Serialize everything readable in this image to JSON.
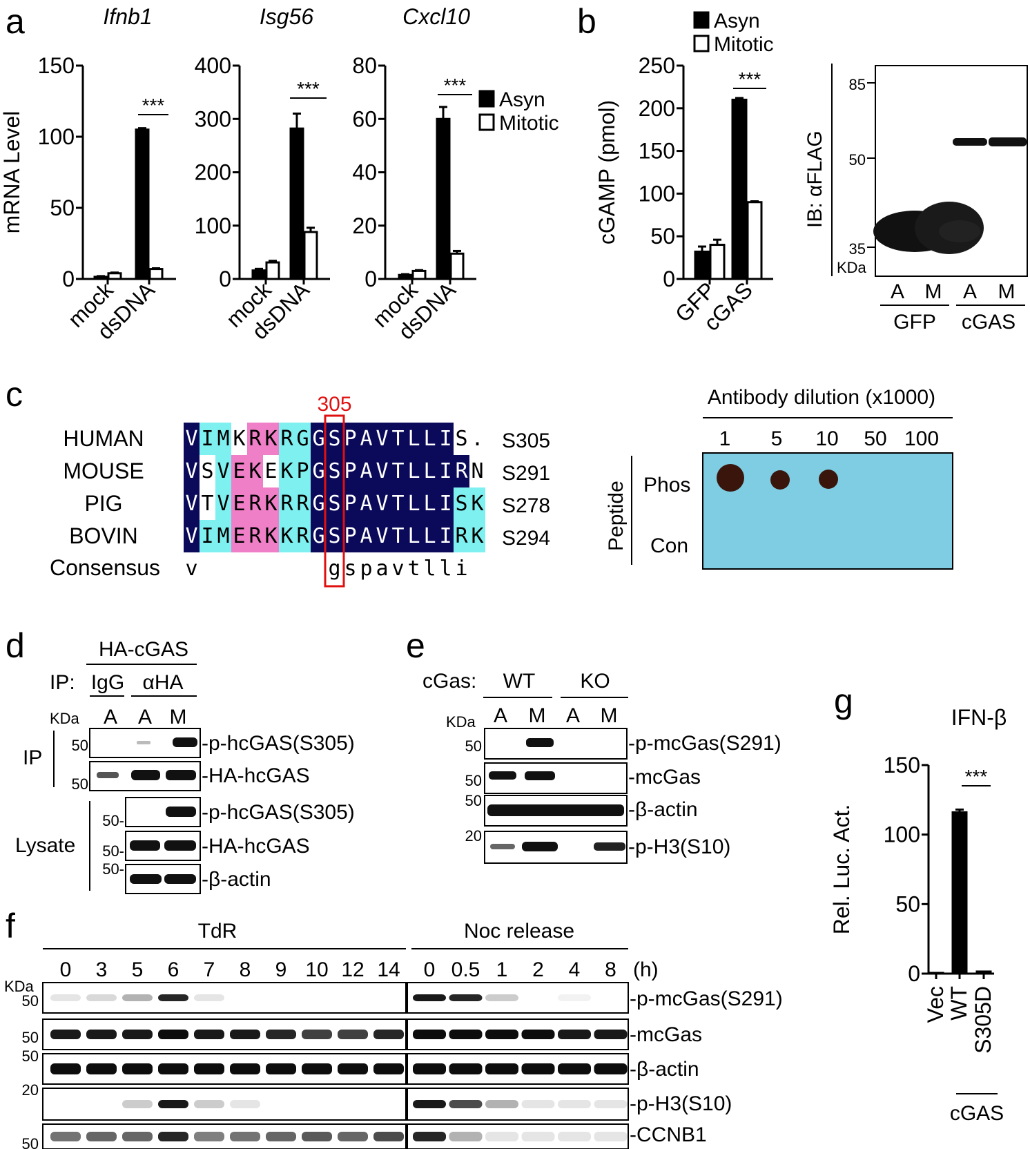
{
  "panel_letters": {
    "a": "a",
    "b": "b",
    "c": "c",
    "d": "d",
    "e": "e",
    "f": "f",
    "g": "g"
  },
  "chart_data": [
    {
      "type": "bar",
      "panel": "a",
      "title": "Ifnb1",
      "ylabel": "mRNA Level",
      "ylim": [
        0,
        150
      ],
      "yticks": [
        "0",
        "50",
        "100",
        "150"
      ],
      "categories": [
        "mock",
        "dsDNA"
      ],
      "series": [
        {
          "name": "Asyn",
          "values": [
            1.5,
            105
          ],
          "errors": [
            0.5,
            1
          ]
        },
        {
          "name": "Mitotic",
          "values": [
            4,
            7
          ],
          "errors": [
            0.5,
            0.5
          ]
        }
      ],
      "significance": "***"
    },
    {
      "type": "bar",
      "panel": "a",
      "title": "Isg56",
      "ylabel": "",
      "ylim": [
        0,
        400
      ],
      "yticks": [
        "0",
        "100",
        "200",
        "300",
        "400"
      ],
      "categories": [
        "mock",
        "dsDNA"
      ],
      "series": [
        {
          "name": "Asyn",
          "values": [
            16,
            282
          ],
          "errors": [
            3,
            28
          ]
        },
        {
          "name": "Mitotic",
          "values": [
            31,
            88
          ],
          "errors": [
            3,
            8
          ]
        }
      ],
      "significance": "***"
    },
    {
      "type": "bar",
      "panel": "a",
      "title": "Cxcl10",
      "ylabel": "",
      "ylim": [
        0,
        80
      ],
      "yticks": [
        "0",
        "20",
        "40",
        "60",
        "80"
      ],
      "categories": [
        "mock",
        "dsDNA"
      ],
      "series": [
        {
          "name": "Asyn",
          "values": [
            1.5,
            60
          ],
          "errors": [
            0.3,
            4.5
          ]
        },
        {
          "name": "Mitotic",
          "values": [
            3,
            9.5
          ],
          "errors": [
            0.3,
            1
          ]
        }
      ],
      "significance": "***",
      "legend": [
        "Asyn",
        "Mitotic"
      ],
      "legend_position": "top-right"
    },
    {
      "type": "bar",
      "panel": "b",
      "ylabel": "cGAMP (pmol)",
      "ylim": [
        0,
        250
      ],
      "yticks": [
        "0",
        "50",
        "100",
        "150",
        "200",
        "250"
      ],
      "categories": [
        "GFP",
        "cGAS"
      ],
      "series": [
        {
          "name": "Asyn",
          "values": [
            32,
            210
          ],
          "errors": [
            6,
            2
          ]
        },
        {
          "name": "Mitotic",
          "values": [
            40,
            90
          ],
          "errors": [
            6,
            1
          ]
        }
      ],
      "significance": "***",
      "legend": [
        "Asyn",
        "Mitotic"
      ],
      "legend_position": "top"
    },
    {
      "type": "bar",
      "panel": "g",
      "title": "IFN-β",
      "ylabel": "Rel. Luc. Act.",
      "ylim": [
        0,
        150
      ],
      "yticks": [
        "0",
        "50",
        "100",
        "150"
      ],
      "categories": [
        "Vec",
        "WT",
        "S305D"
      ],
      "series": [
        {
          "name": "",
          "values": [
            0.5,
            116,
            1.5
          ],
          "errors": [
            0,
            2,
            0
          ]
        }
      ],
      "significance": "***",
      "group_label": "cGAS"
    }
  ],
  "blot_b": {
    "ylabel": "IB: αFLAG",
    "markers": [
      "85",
      "50",
      "35"
    ],
    "kda": "KDa",
    "lanes": [
      "A",
      "M",
      "A",
      "M"
    ],
    "groups": [
      "GFP",
      "cGAS"
    ]
  },
  "alignment": {
    "position_label": "305",
    "rows": [
      {
        "species": "HUMAN",
        "seq": "VIMKRKRGGSPAVTLLIS.",
        "site": "S305"
      },
      {
        "species": "MOUSE",
        "seq": "VSVEKEKPGSPAVTLLIRN",
        "site": "S291"
      },
      {
        "species": "PIG",
        "seq": "VTVERKRRGSPAVTLLISK",
        "site": "S278"
      },
      {
        "species": "BOVIN",
        "seq": "VIMERKKRGSPAVTLLIRK",
        "site": "S294"
      }
    ],
    "consensus_label": "Consensus",
    "consensus": "v        gspavtlli",
    "colors": {
      "navy": "#0b0a5a",
      "cyan": "#7ff0f0",
      "pink": "#ef7fc7",
      "highlight": "#e01010"
    }
  },
  "dotblot": {
    "title": "Antibody dilution (x1000)",
    "dilutions": [
      "1",
      "5",
      "10",
      "50",
      "100"
    ],
    "side_label": "Peptide",
    "rows": [
      "Phos",
      "Con"
    ],
    "background": "#7ecde3"
  },
  "blot_d": {
    "top_label": "HA-cGAS",
    "ip_label": "IP:",
    "ip_groups": [
      "IgG",
      "αHA"
    ],
    "lanes": [
      "A",
      "A",
      "M"
    ],
    "kda": "KDa",
    "section_labels": [
      "IP",
      "Lysate"
    ],
    "rows": [
      {
        "label": "-p-hcGAS(S305)",
        "marker": "50"
      },
      {
        "label": "-HA-hcGAS",
        "marker": "50"
      },
      {
        "label": "-p-hcGAS(S305)",
        "marker": "50-"
      },
      {
        "label": "-HA-hcGAS",
        "marker": "50-"
      },
      {
        "label": "-β-actin",
        "marker": "50-"
      }
    ]
  },
  "blot_e": {
    "top_label": "cGas:",
    "groups": [
      "WT",
      "KO"
    ],
    "lanes": [
      "A",
      "M",
      "A",
      "M"
    ],
    "kda": "KDa",
    "rows": [
      {
        "label": "-p-mcGas(S291)",
        "marker": "50"
      },
      {
        "label": "-mcGas",
        "marker": "50"
      },
      {
        "label": "-β-actin",
        "marker": "50"
      },
      {
        "label": "-p-H3(S10)",
        "marker": "20"
      }
    ]
  },
  "blot_f": {
    "groups": [
      "TdR",
      "Noc release"
    ],
    "tdr_times": [
      "0",
      "3",
      "5",
      "6",
      "7",
      "8",
      "9",
      "10",
      "12",
      "14"
    ],
    "noc_times": [
      "0",
      "0.5",
      "1",
      "2",
      "4",
      "8"
    ],
    "unit": "(h)",
    "kda": "KDa",
    "rows": [
      {
        "label": "-p-mcGas(S291)",
        "marker": "50"
      },
      {
        "label": "-mcGas",
        "marker": "50"
      },
      {
        "label": "-β-actin",
        "marker": "50"
      },
      {
        "label": "-p-H3(S10)",
        "marker": "20"
      },
      {
        "label": "-CCNB1",
        "marker": "50"
      }
    ]
  }
}
